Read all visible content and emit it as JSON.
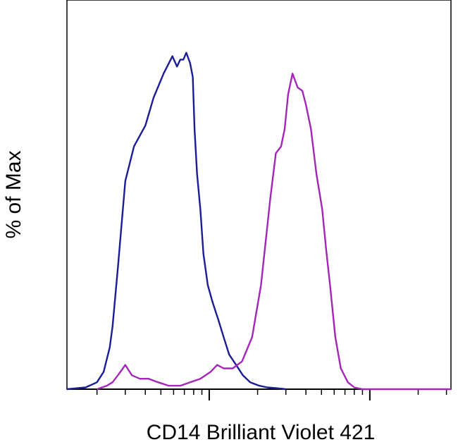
{
  "chart_data": {
    "type": "line",
    "title": "",
    "xlabel": "CD14 Brilliant Violet 421",
    "ylabel": "% of Max",
    "x_scale": "log",
    "xlim": [
      0.13,
      32
    ],
    "ylim": [
      0,
      100
    ],
    "grid": false,
    "legend": "none",
    "series": [
      {
        "color": "#1c1c96",
        "x": [
          0.13,
          0.17,
          0.2,
          0.22,
          0.24,
          0.25,
          0.27,
          0.3,
          0.34,
          0.4,
          0.45,
          0.52,
          0.59,
          0.63,
          0.66,
          0.69,
          0.72,
          0.76,
          0.79,
          0.81,
          0.84,
          0.88,
          0.92,
          0.98,
          1.05,
          1.14,
          1.23,
          1.33,
          1.47,
          1.62,
          1.8,
          2.05,
          2.3,
          2.6,
          3.0
        ],
        "y": [
          0,
          0.5,
          2,
          5,
          12,
          18,
          35,
          60,
          70,
          76,
          84,
          91,
          96,
          93,
          95,
          95,
          97,
          94,
          90,
          75,
          62,
          52,
          39,
          30,
          25,
          20,
          15,
          10,
          7,
          4,
          2,
          1,
          0.5,
          0.3,
          0
        ]
      },
      {
        "color": "#a326b8",
        "x": [
          0.2,
          0.23,
          0.25,
          0.27,
          0.29,
          0.3,
          0.33,
          0.37,
          0.42,
          0.48,
          0.56,
          0.66,
          0.76,
          0.88,
          1.02,
          1.12,
          1.23,
          1.4,
          1.6,
          1.85,
          2.1,
          2.4,
          2.6,
          2.8,
          2.95,
          3.1,
          3.3,
          3.55,
          3.8,
          4.0,
          4.3,
          4.65,
          5.05,
          5.35,
          5.65,
          6.1,
          6.6,
          7.3,
          8.0,
          9.0,
          32
        ],
        "y": [
          0,
          1,
          2,
          4,
          6,
          7,
          4,
          3,
          3,
          2,
          1,
          1,
          2,
          3,
          5,
          7,
          6,
          6,
          8,
          15,
          30,
          55,
          68,
          70,
          75,
          85,
          91,
          87,
          86,
          82,
          75,
          62,
          52,
          40,
          30,
          15,
          6,
          2,
          0.5,
          0,
          0
        ]
      }
    ]
  }
}
